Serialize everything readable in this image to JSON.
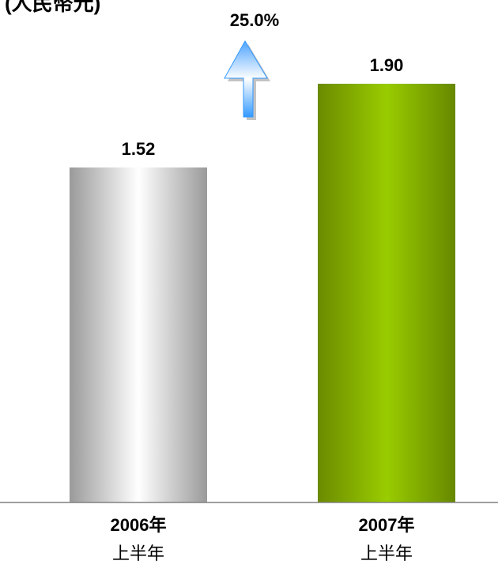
{
  "chart_data": {
    "type": "bar",
    "title": "(人民幣元)",
    "categories": [
      [
        "2006年",
        "上半年"
      ],
      [
        "2007年",
        "上半年"
      ]
    ],
    "values": [
      1.52,
      1.9
    ],
    "value_labels": [
      "1.52",
      "1.90"
    ],
    "colors": [
      "#c8c8c8",
      "#99cc00"
    ],
    "annotation": "25.0%",
    "ylim": [
      0,
      2.28
    ]
  }
}
